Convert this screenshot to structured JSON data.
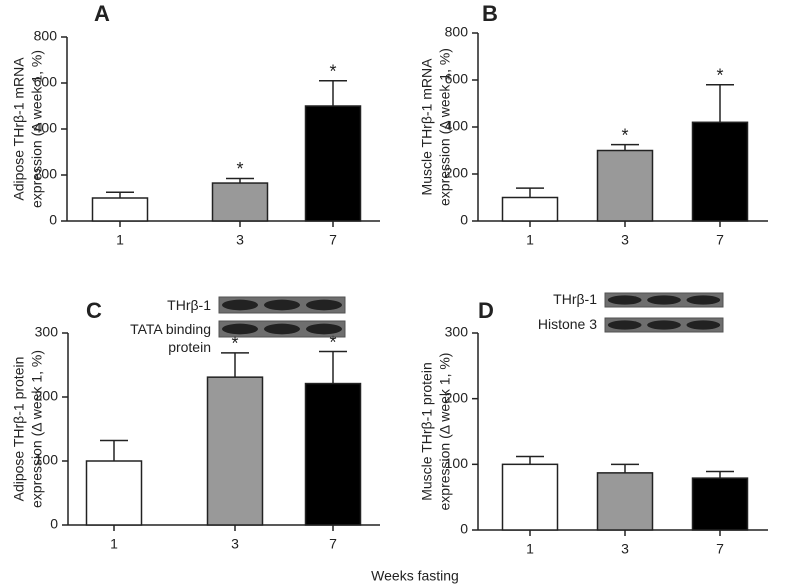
{
  "figure_xlabel": "Weeks fasting",
  "chart_data": [
    {
      "type": "bar",
      "panel": "A",
      "ylabel": [
        "Adipose THrβ-1 mRNA",
        "expression (Δ week 1, %)"
      ],
      "categories": [
        "1",
        "3",
        "7"
      ],
      "values": [
        100,
        165,
        500
      ],
      "errors": [
        25,
        20,
        110
      ],
      "colors": [
        "#ffffff",
        "#999999",
        "#000000"
      ],
      "significance": [
        null,
        "*",
        "*"
      ],
      "ylim": [
        0,
        800
      ],
      "yticks": [
        0,
        200,
        400,
        600,
        800
      ]
    },
    {
      "type": "bar",
      "panel": "B",
      "ylabel": [
        "Muscle THrβ-1 mRNA",
        "expression (Δ week 1, %)"
      ],
      "categories": [
        "1",
        "3",
        "7"
      ],
      "values": [
        100,
        300,
        420
      ],
      "errors": [
        40,
        25,
        160
      ],
      "colors": [
        "#ffffff",
        "#999999",
        "#000000"
      ],
      "significance": [
        null,
        "*",
        "*"
      ],
      "ylim": [
        0,
        800
      ],
      "yticks": [
        0,
        200,
        400,
        600,
        800
      ]
    },
    {
      "type": "bar",
      "panel": "C",
      "ylabel": [
        "Adipose THrβ-1 protein",
        "expression (Δ week 1, %)"
      ],
      "categories": [
        "1",
        "3",
        "7"
      ],
      "values": [
        100,
        231,
        221
      ],
      "errors": [
        32,
        38,
        50
      ],
      "colors": [
        "#ffffff",
        "#999999",
        "#000000"
      ],
      "significance": [
        null,
        "*",
        "*"
      ],
      "blots": [
        "THrβ-1",
        "TATA binding protein"
      ],
      "ylim": [
        0,
        300
      ],
      "yticks": [
        0,
        100,
        200,
        300
      ]
    },
    {
      "type": "bar",
      "panel": "D",
      "ylabel": [
        "Muscle THrβ-1 protein",
        "expression (Δ week 1, %)"
      ],
      "categories": [
        "1",
        "3",
        "7"
      ],
      "values": [
        100,
        87,
        79
      ],
      "errors": [
        12,
        13,
        10
      ],
      "colors": [
        "#ffffff",
        "#999999",
        "#000000"
      ],
      "blots": [
        "THrβ-1",
        "Histone 3"
      ],
      "ylim": [
        0,
        300
      ],
      "yticks": [
        0,
        100,
        200,
        300
      ]
    }
  ]
}
